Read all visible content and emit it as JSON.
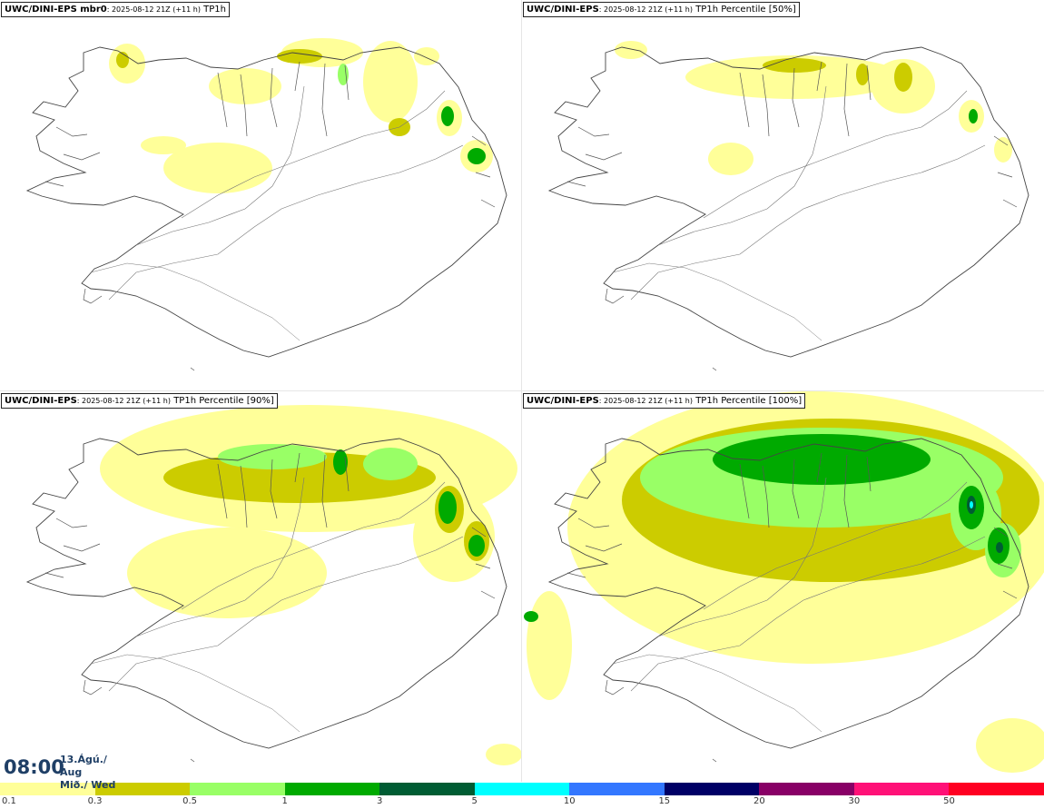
{
  "panels": [
    {
      "model": "UWC/DINI-EPS mbr0",
      "run": "2025-08-12 21Z (+11 h)",
      "product": "TP1h"
    },
    {
      "model": "UWC/DINI-EPS",
      "run": "2025-08-12 21Z (+11 h)",
      "product": "TP1h Percentile [50%]"
    },
    {
      "model": "UWC/DINI-EPS",
      "run": "2025-08-12 21Z (+11 h)",
      "product": "TP1h Percentile [90%]"
    },
    {
      "model": "UWC/DINI-EPS",
      "run": "2025-08-12 21Z (+11 h)",
      "product": "TP1h Percentile [100%]"
    }
  ],
  "valid_time": {
    "clock": "08:00",
    "date_line1": "13.Ágú./ Aug",
    "date_line2": "Mið./ Wed"
  },
  "legend": {
    "thresholds": [
      "0.1",
      "0.3",
      "0.5",
      "1",
      "3",
      "5",
      "10",
      "15",
      "20",
      "30",
      "50"
    ],
    "colors": [
      "#ffff99",
      "#cccc00",
      "#99ff66",
      "#00aa00",
      "#005c33",
      "#00ffff",
      "#3377ff",
      "#000066",
      "#880066",
      "#ff1177",
      "#ff0022"
    ]
  },
  "map_colors": {
    "coast": "#444444",
    "light": "#ffff99",
    "olive": "#cccc00",
    "lightgreen": "#99ff66",
    "green": "#00aa00",
    "darkgreen": "#005c33",
    "cyan": "#00ffff"
  }
}
